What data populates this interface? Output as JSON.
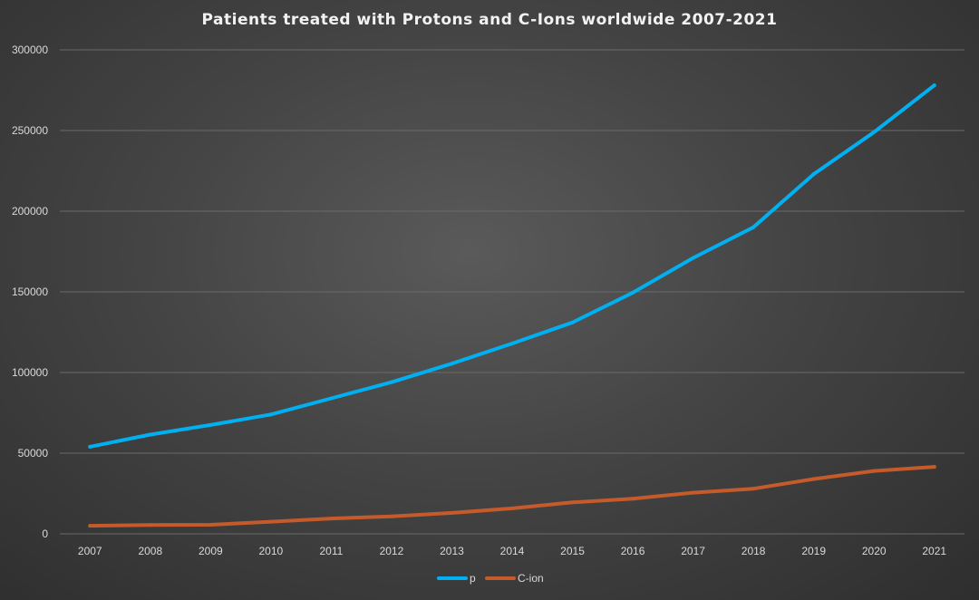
{
  "chart_data": {
    "type": "line",
    "title": "Patients treated with Protons and C-Ions worldwide 2007-2021",
    "xlabel": "",
    "ylabel": "",
    "x": [
      "2007",
      "2008",
      "2009",
      "2010",
      "2011",
      "2012",
      "2013",
      "2014",
      "2015",
      "2016",
      "2017",
      "2018",
      "2019",
      "2020",
      "2021"
    ],
    "ylim": [
      0,
      300000
    ],
    "yticks": [
      "0",
      "50000",
      "100000",
      "150000",
      "200000",
      "250000",
      "300000"
    ],
    "grid": true,
    "legend_position": "bottom",
    "series": [
      {
        "name": "p",
        "color": "#00b0f0",
        "values": [
          54000,
          61500,
          67500,
          74000,
          84000,
          94000,
          105500,
          118000,
          131000,
          149500,
          171000,
          190000,
          223000,
          249000,
          278000
        ]
      },
      {
        "name": "C-ion",
        "color": "#c55a2a",
        "values": [
          5000,
          5500,
          5600,
          7500,
          9500,
          10800,
          13000,
          15800,
          19500,
          21800,
          25500,
          28000,
          34000,
          39000,
          41500
        ]
      }
    ]
  }
}
